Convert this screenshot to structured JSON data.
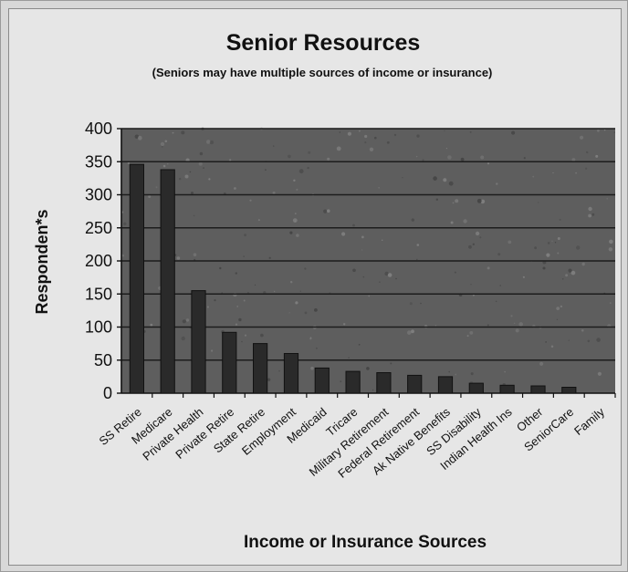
{
  "chart_data": {
    "type": "bar",
    "title": "Senior Resources",
    "subtitle": "(Seniors may have multiple sources of income or insurance)",
    "xlabel": "Income or Insurance Sources",
    "ylabel": "Responden*s",
    "ylim": [
      0,
      400
    ],
    "yticks": [
      0,
      50,
      100,
      150,
      200,
      250,
      300,
      350,
      400
    ],
    "ytick_labels": [
      "0",
      "50",
      "100",
      "150",
      "200",
      "250",
      "300",
      "350",
      "400"
    ],
    "grid": true,
    "legend": "none",
    "categories": [
      "SS Retire",
      "Medicare",
      "Private Health",
      "Private Retire",
      "State Retire",
      "Employment",
      "Medicaid",
      "Tricare",
      "Military Retirement",
      "Federal Retirement",
      "Ak Native Benefits",
      "SS Disability",
      "Indian Health Ins",
      "Other",
      "SeniorCare",
      "Family"
    ],
    "values": [
      346,
      338,
      155,
      92,
      75,
      60,
      38,
      33,
      31,
      27,
      25,
      15,
      12,
      11,
      9,
      0
    ],
    "colors": {
      "plot_background": "#5e5e5e",
      "bar": "#2a2a2a",
      "gridline": "#1c1c1c",
      "card": "#e6e6e6"
    }
  }
}
